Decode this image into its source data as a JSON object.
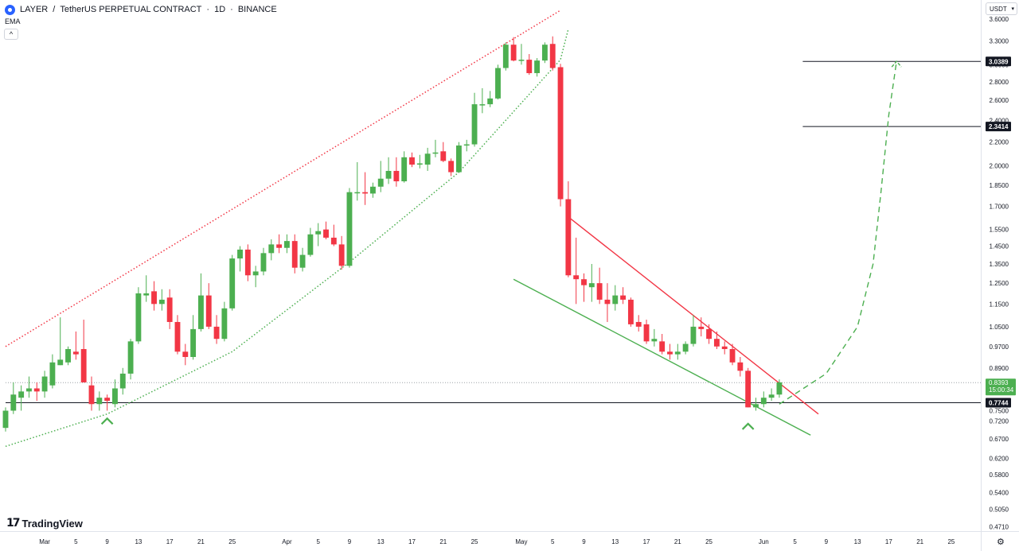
{
  "header": {
    "symbol": "LAYER",
    "separator": "/",
    "pair": "TetherUS PERPETUAL CONTRACT",
    "interval": "1D",
    "exchange": "BINANCE"
  },
  "indicator": {
    "label": "EMA"
  },
  "currency_selector": {
    "label": "USDT",
    "icon": "chevron-down-icon"
  },
  "branding": {
    "name": "TradingView",
    "mark": "17"
  },
  "settings_icon": "⚙",
  "colors": {
    "up": "#4caf50",
    "down": "#f23645",
    "resist": "#f23645",
    "support": "#4caf50",
    "line": "#131722"
  },
  "chart_data": {
    "type": "candlestick",
    "y_scale": "log",
    "ylim": [
      0.4629,
      3.8871
    ],
    "xlim": [
      "2025-02-24",
      "2025-06-30"
    ],
    "y_ticks": [
      "3.6000",
      "3.3000",
      "3.0000",
      "2.8000",
      "2.6000",
      "2.4000",
      "2.2000",
      "2.0000",
      "1.8500",
      "1.7000",
      "1.5500",
      "1.4500",
      "1.3500",
      "1.2500",
      "1.1500",
      "1.0500",
      "0.9700",
      "0.8900",
      "0.8200",
      "0.7500",
      "0.7200",
      "0.6700",
      "0.6200",
      "0.5800",
      "0.5400",
      "0.5050",
      "0.4710"
    ],
    "x_ticks": [
      {
        "date": "2025-03-01",
        "label": "Mar"
      },
      {
        "date": "2025-03-05",
        "label": "5"
      },
      {
        "date": "2025-03-09",
        "label": "9"
      },
      {
        "date": "2025-03-13",
        "label": "13"
      },
      {
        "date": "2025-03-17",
        "label": "17"
      },
      {
        "date": "2025-03-21",
        "label": "21"
      },
      {
        "date": "2025-03-25",
        "label": "25"
      },
      {
        "date": "2025-04-01",
        "label": "Apr"
      },
      {
        "date": "2025-04-05",
        "label": "5"
      },
      {
        "date": "2025-04-09",
        "label": "9"
      },
      {
        "date": "2025-04-13",
        "label": "13"
      },
      {
        "date": "2025-04-17",
        "label": "17"
      },
      {
        "date": "2025-04-21",
        "label": "21"
      },
      {
        "date": "2025-04-25",
        "label": "25"
      },
      {
        "date": "2025-05-01",
        "label": "May"
      },
      {
        "date": "2025-05-05",
        "label": "5"
      },
      {
        "date": "2025-05-09",
        "label": "9"
      },
      {
        "date": "2025-05-13",
        "label": "13"
      },
      {
        "date": "2025-05-17",
        "label": "17"
      },
      {
        "date": "2025-05-21",
        "label": "21"
      },
      {
        "date": "2025-05-25",
        "label": "25"
      },
      {
        "date": "2025-06-01",
        "label": "Jun"
      },
      {
        "date": "2025-06-05",
        "label": "5"
      },
      {
        "date": "2025-06-09",
        "label": "9"
      },
      {
        "date": "2025-06-13",
        "label": "13"
      },
      {
        "date": "2025-06-17",
        "label": "17"
      },
      {
        "date": "2025-06-21",
        "label": "21"
      },
      {
        "date": "2025-06-25",
        "label": "25"
      }
    ],
    "candles": [
      {
        "d": "2025-02-24",
        "o": 0.7,
        "h": 0.76,
        "l": 0.69,
        "c": 0.75
      },
      {
        "d": "2025-02-25",
        "o": 0.75,
        "h": 0.84,
        "l": 0.74,
        "c": 0.8
      },
      {
        "d": "2025-02-26",
        "o": 0.79,
        "h": 0.83,
        "l": 0.75,
        "c": 0.81
      },
      {
        "d": "2025-02-27",
        "o": 0.81,
        "h": 0.86,
        "l": 0.79,
        "c": 0.82
      },
      {
        "d": "2025-02-28",
        "o": 0.82,
        "h": 0.84,
        "l": 0.78,
        "c": 0.81
      },
      {
        "d": "2025-03-01",
        "o": 0.81,
        "h": 0.88,
        "l": 0.79,
        "c": 0.86
      },
      {
        "d": "2025-03-02",
        "o": 0.83,
        "h": 0.94,
        "l": 0.82,
        "c": 0.91
      },
      {
        "d": "2025-03-03",
        "o": 0.9,
        "h": 1.09,
        "l": 0.9,
        "c": 0.92
      },
      {
        "d": "2025-03-04",
        "o": 0.91,
        "h": 0.97,
        "l": 0.9,
        "c": 0.96
      },
      {
        "d": "2025-03-05",
        "o": 0.95,
        "h": 1.03,
        "l": 0.92,
        "c": 0.94
      },
      {
        "d": "2025-03-06",
        "o": 0.96,
        "h": 1.08,
        "l": 0.84,
        "c": 0.84
      },
      {
        "d": "2025-03-07",
        "o": 0.83,
        "h": 0.86,
        "l": 0.75,
        "c": 0.77
      },
      {
        "d": "2025-03-08",
        "o": 0.77,
        "h": 0.81,
        "l": 0.75,
        "c": 0.79
      },
      {
        "d": "2025-03-09",
        "o": 0.79,
        "h": 0.8,
        "l": 0.75,
        "c": 0.78
      },
      {
        "d": "2025-03-10",
        "o": 0.77,
        "h": 0.85,
        "l": 0.76,
        "c": 0.82
      },
      {
        "d": "2025-03-11",
        "o": 0.82,
        "h": 0.89,
        "l": 0.8,
        "c": 0.87
      },
      {
        "d": "2025-03-12",
        "o": 0.87,
        "h": 1.0,
        "l": 0.85,
        "c": 0.99
      },
      {
        "d": "2025-03-13",
        "o": 0.99,
        "h": 1.23,
        "l": 0.98,
        "c": 1.2
      },
      {
        "d": "2025-03-14",
        "o": 1.19,
        "h": 1.29,
        "l": 1.16,
        "c": 1.2
      },
      {
        "d": "2025-03-15",
        "o": 1.21,
        "h": 1.26,
        "l": 1.12,
        "c": 1.15
      },
      {
        "d": "2025-03-16",
        "o": 1.15,
        "h": 1.22,
        "l": 1.12,
        "c": 1.17
      },
      {
        "d": "2025-03-17",
        "o": 1.18,
        "h": 1.22,
        "l": 1.04,
        "c": 1.07
      },
      {
        "d": "2025-03-18",
        "o": 1.07,
        "h": 1.1,
        "l": 0.94,
        "c": 0.95
      },
      {
        "d": "2025-03-19",
        "o": 0.95,
        "h": 0.98,
        "l": 0.9,
        "c": 0.93
      },
      {
        "d": "2025-03-20",
        "o": 0.93,
        "h": 1.1,
        "l": 0.92,
        "c": 1.04
      },
      {
        "d": "2025-03-21",
        "o": 1.04,
        "h": 1.3,
        "l": 1.03,
        "c": 1.19
      },
      {
        "d": "2025-03-22",
        "o": 1.19,
        "h": 1.25,
        "l": 1.04,
        "c": 1.05
      },
      {
        "d": "2025-03-23",
        "o": 1.05,
        "h": 1.1,
        "l": 0.98,
        "c": 1.0
      },
      {
        "d": "2025-03-24",
        "o": 1.0,
        "h": 1.16,
        "l": 0.99,
        "c": 1.13
      },
      {
        "d": "2025-03-25",
        "o": 1.13,
        "h": 1.4,
        "l": 1.12,
        "c": 1.38
      },
      {
        "d": "2025-03-26",
        "o": 1.38,
        "h": 1.45,
        "l": 1.31,
        "c": 1.43
      },
      {
        "d": "2025-03-27",
        "o": 1.43,
        "h": 1.46,
        "l": 1.26,
        "c": 1.29
      },
      {
        "d": "2025-03-28",
        "o": 1.29,
        "h": 1.34,
        "l": 1.23,
        "c": 1.31
      },
      {
        "d": "2025-03-29",
        "o": 1.31,
        "h": 1.44,
        "l": 1.29,
        "c": 1.41
      },
      {
        "d": "2025-03-30",
        "o": 1.41,
        "h": 1.49,
        "l": 1.37,
        "c": 1.46
      },
      {
        "d": "2025-03-31",
        "o": 1.46,
        "h": 1.52,
        "l": 1.41,
        "c": 1.44
      },
      {
        "d": "2025-04-01",
        "o": 1.44,
        "h": 1.52,
        "l": 1.41,
        "c": 1.48
      },
      {
        "d": "2025-04-02",
        "o": 1.48,
        "h": 1.52,
        "l": 1.3,
        "c": 1.33
      },
      {
        "d": "2025-04-03",
        "o": 1.33,
        "h": 1.44,
        "l": 1.31,
        "c": 1.4
      },
      {
        "d": "2025-04-04",
        "o": 1.4,
        "h": 1.56,
        "l": 1.39,
        "c": 1.52
      },
      {
        "d": "2025-04-05",
        "o": 1.52,
        "h": 1.59,
        "l": 1.45,
        "c": 1.54
      },
      {
        "d": "2025-04-06",
        "o": 1.55,
        "h": 1.6,
        "l": 1.49,
        "c": 1.5
      },
      {
        "d": "2025-04-07",
        "o": 1.5,
        "h": 1.58,
        "l": 1.45,
        "c": 1.46
      },
      {
        "d": "2025-04-08",
        "o": 1.46,
        "h": 1.51,
        "l": 1.32,
        "c": 1.34
      },
      {
        "d": "2025-04-09",
        "o": 1.34,
        "h": 1.83,
        "l": 1.33,
        "c": 1.8
      },
      {
        "d": "2025-04-10",
        "o": 1.8,
        "h": 2.03,
        "l": 1.74,
        "c": 1.8
      },
      {
        "d": "2025-04-11",
        "o": 1.8,
        "h": 1.95,
        "l": 1.71,
        "c": 1.79
      },
      {
        "d": "2025-04-12",
        "o": 1.79,
        "h": 1.87,
        "l": 1.76,
        "c": 1.84
      },
      {
        "d": "2025-04-13",
        "o": 1.84,
        "h": 2.04,
        "l": 1.8,
        "c": 1.9
      },
      {
        "d": "2025-04-14",
        "o": 1.9,
        "h": 2.07,
        "l": 1.86,
        "c": 1.96
      },
      {
        "d": "2025-04-15",
        "o": 1.96,
        "h": 2.07,
        "l": 1.84,
        "c": 1.88
      },
      {
        "d": "2025-04-16",
        "o": 1.88,
        "h": 2.12,
        "l": 1.87,
        "c": 2.07
      },
      {
        "d": "2025-04-17",
        "o": 2.07,
        "h": 2.11,
        "l": 1.99,
        "c": 2.01
      },
      {
        "d": "2025-04-18",
        "o": 2.01,
        "h": 2.09,
        "l": 1.98,
        "c": 2.02
      },
      {
        "d": "2025-04-19",
        "o": 2.01,
        "h": 2.15,
        "l": 1.96,
        "c": 2.1
      },
      {
        "d": "2025-04-20",
        "o": 2.1,
        "h": 2.22,
        "l": 2.07,
        "c": 2.11
      },
      {
        "d": "2025-04-21",
        "o": 2.12,
        "h": 2.2,
        "l": 2.03,
        "c": 2.04
      },
      {
        "d": "2025-04-22",
        "o": 2.04,
        "h": 2.06,
        "l": 1.92,
        "c": 1.95
      },
      {
        "d": "2025-04-23",
        "o": 1.95,
        "h": 2.2,
        "l": 1.95,
        "c": 2.17
      },
      {
        "d": "2025-04-24",
        "o": 2.17,
        "h": 2.22,
        "l": 2.12,
        "c": 2.18
      },
      {
        "d": "2025-04-25",
        "o": 2.18,
        "h": 2.68,
        "l": 2.16,
        "c": 2.56
      },
      {
        "d": "2025-04-26",
        "o": 2.56,
        "h": 2.73,
        "l": 2.47,
        "c": 2.56
      },
      {
        "d": "2025-04-27",
        "o": 2.56,
        "h": 2.7,
        "l": 2.53,
        "c": 2.62
      },
      {
        "d": "2025-04-28",
        "o": 2.62,
        "h": 3.0,
        "l": 2.61,
        "c": 2.96
      },
      {
        "d": "2025-04-29",
        "o": 2.96,
        "h": 3.28,
        "l": 2.93,
        "c": 3.25
      },
      {
        "d": "2025-04-30",
        "o": 3.25,
        "h": 3.35,
        "l": 3.04,
        "c": 3.05
      },
      {
        "d": "2025-05-01",
        "o": 3.05,
        "h": 3.26,
        "l": 3.0,
        "c": 3.06
      },
      {
        "d": "2025-05-02",
        "o": 3.06,
        "h": 3.13,
        "l": 2.88,
        "c": 2.9
      },
      {
        "d": "2025-05-03",
        "o": 2.9,
        "h": 3.08,
        "l": 2.86,
        "c": 3.05
      },
      {
        "d": "2025-05-04",
        "o": 3.05,
        "h": 3.28,
        "l": 3.02,
        "c": 3.25
      },
      {
        "d": "2025-05-05",
        "o": 3.26,
        "h": 3.36,
        "l": 2.93,
        "c": 2.96
      },
      {
        "d": "2025-05-06",
        "o": 2.97,
        "h": 3.01,
        "l": 1.7,
        "c": 1.75
      },
      {
        "d": "2025-05-07",
        "o": 1.75,
        "h": 1.88,
        "l": 1.28,
        "c": 1.29
      },
      {
        "d": "2025-05-08",
        "o": 1.29,
        "h": 1.5,
        "l": 1.15,
        "c": 1.27
      },
      {
        "d": "2025-05-09",
        "o": 1.27,
        "h": 1.3,
        "l": 1.16,
        "c": 1.24
      },
      {
        "d": "2025-05-10",
        "o": 1.23,
        "h": 1.35,
        "l": 1.16,
        "c": 1.25
      },
      {
        "d": "2025-05-11",
        "o": 1.25,
        "h": 1.33,
        "l": 1.15,
        "c": 1.17
      },
      {
        "d": "2025-05-12",
        "o": 1.17,
        "h": 1.25,
        "l": 1.07,
        "c": 1.15
      },
      {
        "d": "2025-05-13",
        "o": 1.15,
        "h": 1.24,
        "l": 1.12,
        "c": 1.19
      },
      {
        "d": "2025-05-14",
        "o": 1.19,
        "h": 1.23,
        "l": 1.15,
        "c": 1.17
      },
      {
        "d": "2025-05-15",
        "o": 1.17,
        "h": 1.18,
        "l": 1.05,
        "c": 1.06
      },
      {
        "d": "2025-05-16",
        "o": 1.07,
        "h": 1.1,
        "l": 1.03,
        "c": 1.05
      },
      {
        "d": "2025-05-17",
        "o": 1.06,
        "h": 1.08,
        "l": 0.98,
        "c": 0.99
      },
      {
        "d": "2025-05-18",
        "o": 0.99,
        "h": 1.04,
        "l": 0.97,
        "c": 1.0
      },
      {
        "d": "2025-05-19",
        "o": 0.99,
        "h": 1.02,
        "l": 0.94,
        "c": 0.95
      },
      {
        "d": "2025-05-20",
        "o": 0.95,
        "h": 0.98,
        "l": 0.92,
        "c": 0.94
      },
      {
        "d": "2025-05-21",
        "o": 0.94,
        "h": 0.98,
        "l": 0.92,
        "c": 0.95
      },
      {
        "d": "2025-05-22",
        "o": 0.95,
        "h": 0.99,
        "l": 0.94,
        "c": 0.98
      },
      {
        "d": "2025-05-23",
        "o": 0.98,
        "h": 1.1,
        "l": 0.97,
        "c": 1.05
      },
      {
        "d": "2025-05-24",
        "o": 1.05,
        "h": 1.09,
        "l": 1.01,
        "c": 1.04
      },
      {
        "d": "2025-05-25",
        "o": 1.04,
        "h": 1.06,
        "l": 0.98,
        "c": 1.0
      },
      {
        "d": "2025-05-26",
        "o": 1.0,
        "h": 1.03,
        "l": 0.96,
        "c": 0.97
      },
      {
        "d": "2025-05-27",
        "o": 0.97,
        "h": 0.99,
        "l": 0.94,
        "c": 0.96
      },
      {
        "d": "2025-05-28",
        "o": 0.96,
        "h": 0.98,
        "l": 0.9,
        "c": 0.91
      },
      {
        "d": "2025-05-29",
        "o": 0.91,
        "h": 0.93,
        "l": 0.86,
        "c": 0.88
      },
      {
        "d": "2025-05-30",
        "o": 0.88,
        "h": 0.89,
        "l": 0.76,
        "c": 0.76
      },
      {
        "d": "2025-05-31",
        "o": 0.76,
        "h": 0.79,
        "l": 0.75,
        "c": 0.77
      },
      {
        "d": "2025-06-01",
        "o": 0.77,
        "h": 0.81,
        "l": 0.76,
        "c": 0.79
      },
      {
        "d": "2025-06-02",
        "o": 0.79,
        "h": 0.82,
        "l": 0.78,
        "c": 0.8
      },
      {
        "d": "2025-06-03",
        "o": 0.8,
        "h": 0.85,
        "l": 0.79,
        "c": 0.84
      }
    ],
    "price_labels": [
      {
        "value": 3.0389,
        "text": "3.0389",
        "kind": "level"
      },
      {
        "value": 2.3414,
        "text": "2.3414",
        "kind": "level"
      },
      {
        "value": 0.8393,
        "text": "0.8393",
        "sub": "15:00:34",
        "kind": "last"
      },
      {
        "value": 0.7744,
        "text": "0.7744",
        "kind": "level"
      }
    ],
    "horizontal_lines": [
      {
        "value": 3.0389,
        "from": "2025-06-06",
        "to": "2025-06-30"
      },
      {
        "value": 2.3414,
        "from": "2025-06-06",
        "to": "2025-06-30"
      },
      {
        "value": 0.7744,
        "from": "2025-02-24",
        "to": "2025-06-30"
      },
      {
        "value": 0.8393,
        "from": "2025-02-24",
        "to": "2025-06-30",
        "style": "dotted"
      }
    ],
    "trendlines": [
      {
        "name": "upper-channel",
        "kind": "dotted",
        "color": "resist",
        "points": [
          [
            "2025-02-24",
            0.97
          ],
          [
            "2025-05-06",
            3.73
          ]
        ]
      },
      {
        "name": "lower-channel",
        "kind": "dotted",
        "color": "support",
        "points": [
          [
            "2025-02-24",
            0.65
          ],
          [
            "2025-03-09",
            0.74
          ],
          [
            "2025-03-25",
            0.95
          ],
          [
            "2025-04-09",
            1.36
          ],
          [
            "2025-04-23",
            1.95
          ],
          [
            "2025-05-06",
            3.06
          ],
          [
            "2025-05-07",
            3.46
          ]
        ]
      },
      {
        "name": "descending-resistance",
        "kind": "solid",
        "color": "resist",
        "points": [
          [
            "2025-05-07",
            1.63
          ],
          [
            "2025-06-08",
            0.74
          ]
        ]
      },
      {
        "name": "descending-support",
        "kind": "solid",
        "color": "support",
        "points": [
          [
            "2025-04-30",
            1.27
          ],
          [
            "2025-06-07",
            0.68
          ]
        ]
      },
      {
        "name": "projection",
        "kind": "dashed",
        "color": "support",
        "points": [
          [
            "2025-06-03",
            0.77
          ],
          [
            "2025-06-09",
            0.87
          ],
          [
            "2025-06-13",
            1.05
          ],
          [
            "2025-06-15",
            1.35
          ],
          [
            "2025-06-16",
            1.8
          ],
          [
            "2025-06-17",
            2.45
          ],
          [
            "2025-06-18",
            3.04
          ]
        ]
      }
    ],
    "markers": [
      {
        "date": "2025-03-09",
        "value": 0.72,
        "shape": "caret-up",
        "color": "support"
      },
      {
        "date": "2025-05-30",
        "value": 0.705,
        "shape": "caret-up",
        "color": "support"
      }
    ]
  }
}
